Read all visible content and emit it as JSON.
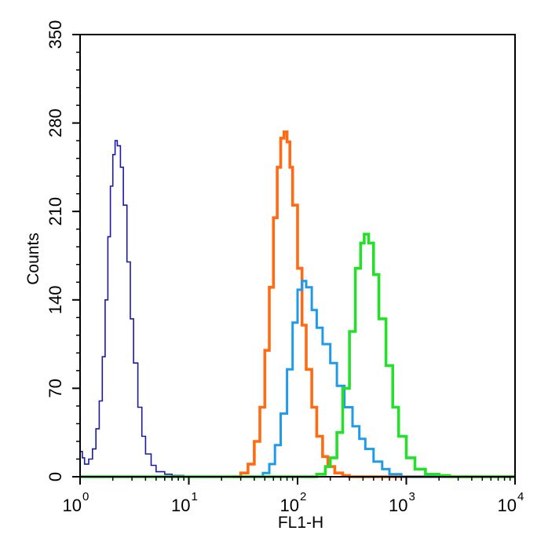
{
  "chart_data": {
    "type": "line",
    "title": "",
    "xlabel": "FL1-H",
    "ylabel": "Counts",
    "x_scale": "log",
    "xlim": [
      1,
      10000
    ],
    "ylim": [
      0,
      350
    ],
    "x_ticks": [
      {
        "value": 1,
        "base": "10",
        "exp": "0"
      },
      {
        "value": 10,
        "base": "10",
        "exp": "1"
      },
      {
        "value": 100,
        "base": "10",
        "exp": "2"
      },
      {
        "value": 1000,
        "base": "10",
        "exp": "3"
      },
      {
        "value": 10000,
        "base": "10",
        "exp": "4"
      }
    ],
    "y_ticks": [
      0,
      70,
      140,
      210,
      280,
      350
    ],
    "grid": false,
    "legend": "none",
    "series": [
      {
        "color": "#1a1aa6",
        "stroke": "thin",
        "points": [
          [
            1.0,
            20
          ],
          [
            1.05,
            15
          ],
          [
            1.1,
            10
          ],
          [
            1.2,
            14
          ],
          [
            1.3,
            22
          ],
          [
            1.4,
            38
          ],
          [
            1.5,
            60
          ],
          [
            1.6,
            95
          ],
          [
            1.7,
            140
          ],
          [
            1.8,
            190
          ],
          [
            1.9,
            230
          ],
          [
            2.0,
            255
          ],
          [
            2.1,
            266
          ],
          [
            2.2,
            262
          ],
          [
            2.35,
            245
          ],
          [
            2.5,
            215
          ],
          [
            2.7,
            170
          ],
          [
            2.9,
            125
          ],
          [
            3.1,
            90
          ],
          [
            3.4,
            55
          ],
          [
            3.7,
            32
          ],
          [
            4.0,
            18
          ],
          [
            4.5,
            9
          ],
          [
            5.0,
            4
          ],
          [
            6.0,
            2
          ],
          [
            7.0,
            1
          ],
          [
            9.0,
            0
          ],
          [
            10000,
            0
          ]
        ]
      },
      {
        "color": "#ff6a13",
        "stroke": "thick",
        "points": [
          [
            25,
            0
          ],
          [
            30,
            3
          ],
          [
            35,
            10
          ],
          [
            40,
            28
          ],
          [
            45,
            55
          ],
          [
            50,
            100
          ],
          [
            55,
            150
          ],
          [
            60,
            205
          ],
          [
            65,
            245
          ],
          [
            70,
            268
          ],
          [
            75,
            273
          ],
          [
            80,
            265
          ],
          [
            85,
            245
          ],
          [
            90,
            215
          ],
          [
            100,
            165
          ],
          [
            110,
            120
          ],
          [
            120,
            85
          ],
          [
            135,
            55
          ],
          [
            150,
            32
          ],
          [
            170,
            16
          ],
          [
            190,
            8
          ],
          [
            220,
            3
          ],
          [
            260,
            1
          ],
          [
            300,
            0
          ],
          [
            10000,
            0
          ]
        ]
      },
      {
        "color": "#1f9be8",
        "stroke": "medium",
        "points": [
          [
            40,
            0
          ],
          [
            48,
            3
          ],
          [
            55,
            10
          ],
          [
            62,
            25
          ],
          [
            70,
            50
          ],
          [
            80,
            85
          ],
          [
            90,
            122
          ],
          [
            100,
            148
          ],
          [
            110,
            155
          ],
          [
            120,
            150
          ],
          [
            135,
            132
          ],
          [
            150,
            118
          ],
          [
            170,
            105
          ],
          [
            200,
            90
          ],
          [
            230,
            72
          ],
          [
            270,
            55
          ],
          [
            320,
            40
          ],
          [
            370,
            30
          ],
          [
            420,
            22
          ],
          [
            500,
            12
          ],
          [
            600,
            6
          ],
          [
            700,
            2
          ],
          [
            900,
            0
          ],
          [
            10000,
            0
          ]
        ]
      },
      {
        "color": "#24e02a",
        "stroke": "thick",
        "points": [
          [
            1,
            0
          ],
          [
            100,
            0
          ],
          [
            150,
            2
          ],
          [
            180,
            8
          ],
          [
            200,
            15
          ],
          [
            230,
            35
          ],
          [
            260,
            70
          ],
          [
            300,
            115
          ],
          [
            340,
            165
          ],
          [
            380,
            185
          ],
          [
            410,
            192
          ],
          [
            450,
            185
          ],
          [
            500,
            160
          ],
          [
            560,
            125
          ],
          [
            650,
            88
          ],
          [
            750,
            55
          ],
          [
            850,
            32
          ],
          [
            1000,
            15
          ],
          [
            1200,
            6
          ],
          [
            1500,
            2
          ],
          [
            2000,
            1
          ],
          [
            2500,
            0
          ],
          [
            10000,
            0
          ]
        ]
      }
    ]
  }
}
